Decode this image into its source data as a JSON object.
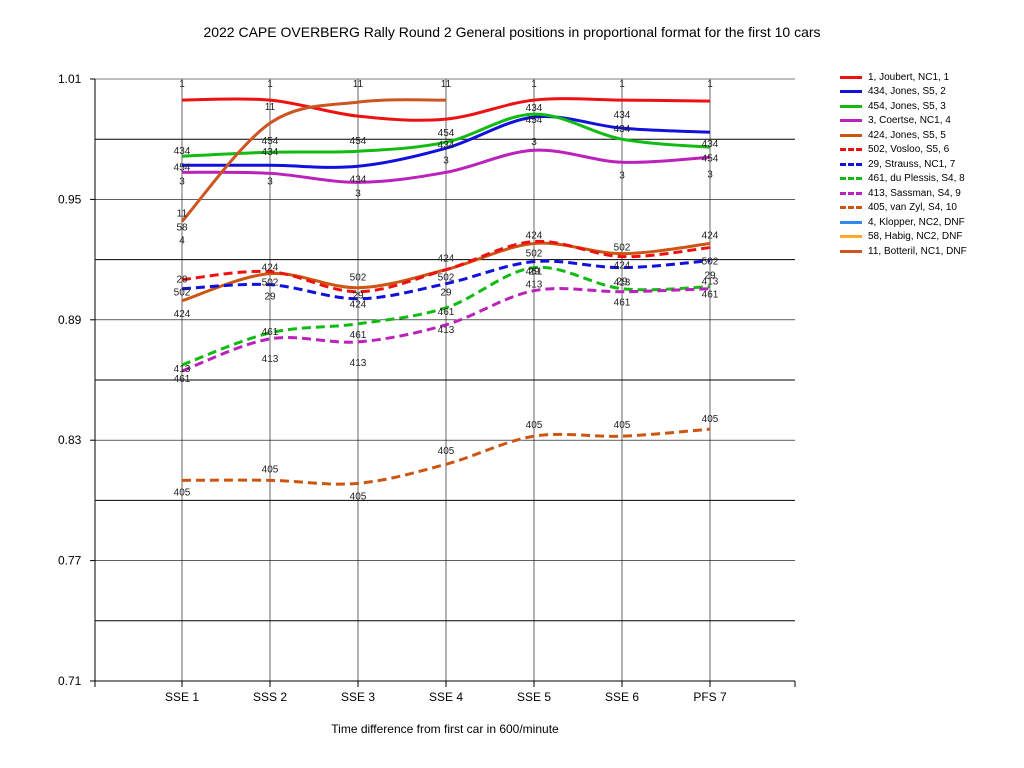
{
  "chart_data": {
    "type": "line",
    "title": "2022 CAPE OVERBERG Rally Round 2  General positions in proportional format for the first 10 cars",
    "xlabel": "Time difference from first car in 600/minute",
    "ylabel": "",
    "categories": [
      "SSE 1",
      "SSS 2",
      "SSE 3",
      "SSE 4",
      "SSE 5",
      "SSE 6",
      "PFS 7"
    ],
    "yticks": [
      "1.01",
      "0.95",
      "0.89",
      "0.83",
      "0.77",
      "0.71"
    ],
    "ylim": [
      0.71,
      1.01
    ],
    "grid": true,
    "legend_position": "right",
    "series": [
      {
        "name": "1, Joubert, NC1, 1",
        "label": "1",
        "color": "#ee1111",
        "dashed": false,
        "values": [
          0.9995,
          0.9995,
          0.9915,
          0.99,
          0.9995,
          0.9995,
          0.999
        ]
      },
      {
        "name": "434, Jones, S5, 2",
        "label": "434",
        "color": "#1111dd",
        "dashed": false,
        "values": [
          0.967,
          0.967,
          0.9665,
          0.9755,
          0.991,
          0.9855,
          0.9835
        ]
      },
      {
        "name": "454, Jones, S5, 3",
        "label": "454",
        "color": "#11bb11",
        "dashed": false,
        "values": [
          0.9715,
          0.9735,
          0.974,
          0.9785,
          0.9925,
          0.98,
          0.976
        ]
      },
      {
        "name": "3, Coertse, NC1, 4",
        "label": "3",
        "color": "#bb22bb",
        "dashed": false,
        "values": [
          0.9635,
          0.963,
          0.9585,
          0.9635,
          0.9745,
          0.9685,
          0.971
        ]
      },
      {
        "name": "424, Jones, S5, 5",
        "label": "424",
        "color": "#cc5511",
        "dashed": false,
        "values": [
          0.8995,
          0.913,
          0.906,
          0.915,
          0.928,
          0.923,
          0.928
        ]
      },
      {
        "name": "502, Vosloo, S5, 6",
        "label": "502",
        "color": "#ee1111",
        "dashed": true,
        "values": [
          0.91,
          0.914,
          0.904,
          0.915,
          0.929,
          0.9215,
          0.926
        ]
      },
      {
        "name": "29, Strauss, NC1, 7",
        "label": "29",
        "color": "#1111dd",
        "dashed": true,
        "values": [
          0.9055,
          0.9075,
          0.9005,
          0.908,
          0.919,
          0.916,
          0.9195
        ]
      },
      {
        "name": "461, du Plessis, S4, 8",
        "label": "461",
        "color": "#11bb11",
        "dashed": true,
        "values": [
          0.8675,
          0.8835,
          0.888,
          0.896,
          0.916,
          0.9055,
          0.9065
        ]
      },
      {
        "name": "413, Sassman, S4, 9",
        "label": "413",
        "color": "#bb22bb",
        "dashed": true,
        "values": [
          0.8645,
          0.8805,
          0.879,
          0.8875,
          0.9045,
          0.904,
          0.9055
        ]
      },
      {
        "name": "405, van Zyl, S4, 10",
        "label": "405",
        "color": "#cc5511",
        "dashed": true,
        "values": [
          0.81,
          0.81,
          0.8085,
          0.818,
          0.832,
          0.832,
          0.8355
        ]
      },
      {
        "name": "4, Klopper, NC2, DNF",
        "label": "4",
        "color": "#3388ee",
        "dashed": false,
        "values": [
          null,
          null,
          null,
          null,
          null,
          null,
          null
        ]
      },
      {
        "name": "58, Habig, NC2, DNF",
        "label": "58",
        "color": "#ffaa22",
        "dashed": false,
        "values": [
          null,
          null,
          null,
          null,
          null,
          null,
          null
        ]
      },
      {
        "name": "11, Botteril, NC1, DNF",
        "label": "11",
        "color": "#cc5522",
        "dashed": false,
        "values": [
          0.939,
          0.988,
          0.9985,
          0.9995,
          null,
          null,
          null
        ]
      }
    ],
    "point_labels": [
      {
        "text": "1",
        "x": 0,
        "y": 1.008
      },
      {
        "text": "1",
        "x": 1,
        "y": 1.008
      },
      {
        "text": "1",
        "x": 4,
        "y": 1.008
      },
      {
        "text": "1",
        "x": 5,
        "y": 1.008
      },
      {
        "text": "1",
        "x": 6,
        "y": 1.008
      },
      {
        "text": "11",
        "x": 2,
        "y": 1.008
      },
      {
        "text": "11",
        "x": 3,
        "y": 1.008
      },
      {
        "text": "11",
        "x": 1,
        "y": 0.9965
      },
      {
        "text": "11",
        "x": 0,
        "y": 0.9435
      },
      {
        "text": "58",
        "x": 0,
        "y": 0.9365
      },
      {
        "text": "4",
        "x": 0,
        "y": 0.93
      },
      {
        "text": "434",
        "x": 0,
        "y": 0.9745
      },
      {
        "text": "454",
        "x": 0,
        "y": 0.9665
      },
      {
        "text": "3",
        "x": 0,
        "y": 0.9595
      },
      {
        "text": "29",
        "x": 0,
        "y": 0.9105
      },
      {
        "text": "502",
        "x": 0,
        "y": 0.904
      },
      {
        "text": "424",
        "x": 0,
        "y": 0.8935
      },
      {
        "text": "413",
        "x": 0,
        "y": 0.866
      },
      {
        "text": "461",
        "x": 0,
        "y": 0.861
      },
      {
        "text": "405",
        "x": 0,
        "y": 0.8045
      },
      {
        "text": "454",
        "x": 1,
        "y": 0.9795
      },
      {
        "text": "434",
        "x": 1,
        "y": 0.974
      },
      {
        "text": "3",
        "x": 1,
        "y": 0.9595
      },
      {
        "text": "424",
        "x": 1,
        "y": 0.9165
      },
      {
        "text": "502",
        "x": 1,
        "y": 0.909
      },
      {
        "text": "29",
        "x": 1,
        "y": 0.902
      },
      {
        "text": "461",
        "x": 1,
        "y": 0.8845
      },
      {
        "text": "413",
        "x": 1,
        "y": 0.871
      },
      {
        "text": "405",
        "x": 1,
        "y": 0.816
      },
      {
        "text": "454",
        "x": 2,
        "y": 0.9795
      },
      {
        "text": "434",
        "x": 2,
        "y": 0.9605
      },
      {
        "text": "3",
        "x": 2,
        "y": 0.9535
      },
      {
        "text": "502",
        "x": 2,
        "y": 0.9115
      },
      {
        "text": "29",
        "x": 2,
        "y": 0.9025
      },
      {
        "text": "424",
        "x": 2,
        "y": 0.898
      },
      {
        "text": "461",
        "x": 2,
        "y": 0.883
      },
      {
        "text": "413",
        "x": 2,
        "y": 0.869
      },
      {
        "text": "405",
        "x": 2,
        "y": 0.8025
      },
      {
        "text": "454",
        "x": 3,
        "y": 0.9835
      },
      {
        "text": "434",
        "x": 3,
        "y": 0.9775
      },
      {
        "text": "3",
        "x": 3,
        "y": 0.97
      },
      {
        "text": "424",
        "x": 3,
        "y": 0.921
      },
      {
        "text": "502",
        "x": 3,
        "y": 0.9115
      },
      {
        "text": "29",
        "x": 3,
        "y": 0.904
      },
      {
        "text": "461",
        "x": 3,
        "y": 0.8945
      },
      {
        "text": "413",
        "x": 3,
        "y": 0.8855
      },
      {
        "text": "405",
        "x": 3,
        "y": 0.825
      },
      {
        "text": "434",
        "x": 4,
        "y": 0.996
      },
      {
        "text": "454",
        "x": 4,
        "y": 0.99
      },
      {
        "text": "3",
        "x": 4,
        "y": 0.979
      },
      {
        "text": "424",
        "x": 4,
        "y": 0.9325
      },
      {
        "text": "502",
        "x": 4,
        "y": 0.9235
      },
      {
        "text": "461",
        "x": 4,
        "y": 0.9145
      },
      {
        "text": "29",
        "x": 4,
        "y": 0.9145
      },
      {
        "text": "413",
        "x": 4,
        "y": 0.908
      },
      {
        "text": "405",
        "x": 4,
        "y": 0.838
      },
      {
        "text": "434",
        "x": 5,
        "y": 0.9925
      },
      {
        "text": "434",
        "x": 5,
        "y": 0.9855
      },
      {
        "text": "3",
        "x": 5,
        "y": 0.9625
      },
      {
        "text": "502",
        "x": 5,
        "y": 0.9265
      },
      {
        "text": "424",
        "x": 5,
        "y": 0.9175
      },
      {
        "text": "413",
        "x": 5,
        "y": 0.909
      },
      {
        "text": "29",
        "x": 5,
        "y": 0.9095
      },
      {
        "text": "461",
        "x": 5,
        "y": 0.899
      },
      {
        "text": "405",
        "x": 5,
        "y": 0.838
      },
      {
        "text": "434",
        "x": 6,
        "y": 0.978
      },
      {
        "text": "454",
        "x": 6,
        "y": 0.971
      },
      {
        "text": "3",
        "x": 6,
        "y": 0.963
      },
      {
        "text": "424",
        "x": 6,
        "y": 0.9325
      },
      {
        "text": "502",
        "x": 6,
        "y": 0.9195
      },
      {
        "text": "29",
        "x": 6,
        "y": 0.9125
      },
      {
        "text": "413",
        "x": 6,
        "y": 0.9095
      },
      {
        "text": "461",
        "x": 6,
        "y": 0.903
      },
      {
        "text": "405",
        "x": 6,
        "y": 0.841
      }
    ]
  }
}
